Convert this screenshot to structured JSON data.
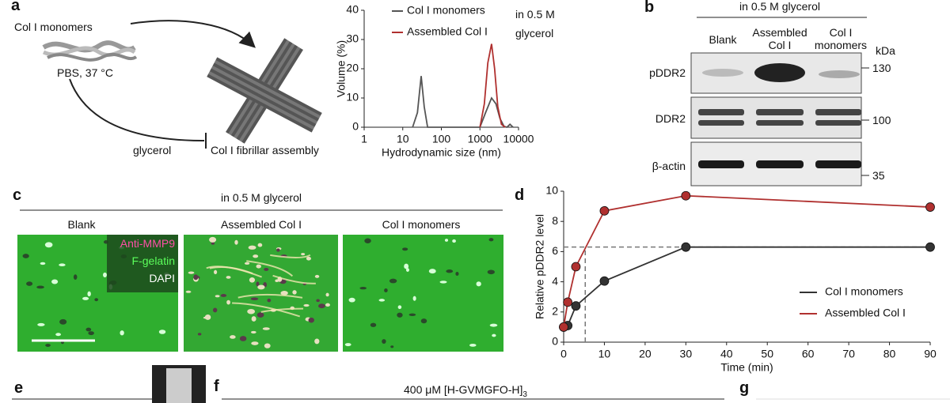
{
  "panels": {
    "a": {
      "label": "a",
      "monomers": "Col I monomers",
      "condition": "PBS, 37 °C",
      "inhibitor": "glycerol",
      "assembly": "Col I fibrillar assembly"
    },
    "b": {
      "label": "b",
      "header": "in 0.5 M glycerol",
      "columns": [
        "Blank",
        "Assembled Col I",
        "Col I monomers"
      ],
      "unit": "kDa",
      "rows": [
        "pDDR2",
        "DDR2",
        "β-actin"
      ],
      "markers": [
        "130",
        "100",
        "35"
      ]
    },
    "c": {
      "label": "c",
      "header": "in 0.5 M glycerol",
      "columns": [
        "Blank",
        "Assembled Col I",
        "Col I monomers"
      ],
      "stains": [
        "Anti-MMP9",
        "F-gelatin",
        "DAPI"
      ]
    },
    "d": {
      "label": "d"
    },
    "e": {
      "label": "e"
    },
    "f": {
      "label": "f",
      "title": "400 μM [H-GVMGFO-H]",
      "title_subscript": "3"
    },
    "g": {
      "label": "g"
    }
  },
  "chart_data": [
    {
      "type": "line",
      "xscale": "log",
      "x_label": "Hydrodynamic size (nm)",
      "y_label": "Volume (%)",
      "legend_note": "in 0.5 M glycerol",
      "xlim": [
        1,
        10000
      ],
      "ylim": [
        0,
        40
      ],
      "xticks": [
        1,
        10,
        100,
        1000,
        10000
      ],
      "yticks": [
        0,
        10,
        20,
        30,
        40
      ],
      "series": [
        {
          "name": "Col I monomers",
          "color": "#555555",
          "x": [
            18,
            24,
            30,
            36,
            44,
            1000,
            1400,
            2000,
            2600,
            3300,
            4200,
            5000,
            6000,
            7200
          ],
          "values": [
            0,
            5,
            17.5,
            7,
            0,
            0,
            5,
            10,
            8,
            3,
            0.3,
            0,
            1,
            0
          ]
        },
        {
          "name": "Assembled Col I",
          "color": "#b0302f",
          "x": [
            1000,
            1300,
            1600,
            2000,
            2400,
            2900,
            3600,
            4500
          ],
          "values": [
            0,
            8,
            22,
            28.5,
            20,
            7,
            1,
            0
          ]
        }
      ]
    },
    {
      "type": "line",
      "markers": true,
      "x_label": "Time (min)",
      "y_label": "Relative pDDR2 level",
      "xlim": [
        0,
        90
      ],
      "ylim": [
        0,
        10
      ],
      "xticks": [
        0,
        10,
        20,
        30,
        40,
        50,
        60,
        70,
        80,
        90
      ],
      "yticks": [
        0,
        2,
        4,
        6,
        8,
        10
      ],
      "x": [
        0,
        1,
        3,
        10,
        30,
        90
      ],
      "series": [
        {
          "name": "Col I monomers",
          "color": "#333333",
          "values": [
            1,
            1.1,
            2.4,
            4.05,
            6.3,
            6.3
          ]
        },
        {
          "name": "Assembled Col I",
          "color": "#b0302f",
          "values": [
            1,
            2.65,
            5,
            8.7,
            9.7,
            8.95
          ]
        }
      ],
      "guides": {
        "x": 5.3,
        "y": 6.3
      }
    }
  ]
}
